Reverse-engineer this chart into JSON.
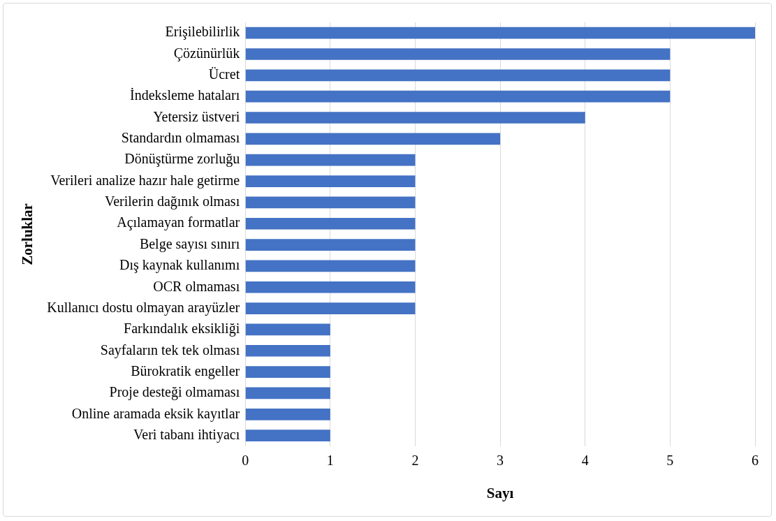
{
  "chart_data": {
    "type": "bar",
    "orientation": "horizontal",
    "xlabel": "Sayı",
    "ylabel": "Zorluklar",
    "categories": [
      "Erişilebilirlik",
      "Çözünürlük",
      "Ücret",
      "İndeksleme hataları",
      "Yetersiz üstveri",
      "Standardın olmaması",
      "Dönüştürme zorluğu",
      "Verileri analize hazır hale getirme",
      "Verilerin dağınık olması",
      "Açılamayan formatlar",
      "Belge sayısı sınırı",
      "Dış kaynak kullanımı",
      "OCR olmaması",
      "Kullanıcı dostu olmayan arayüzler",
      "Farkındalık eksikliği",
      "Sayfaların tek tek olması",
      "Bürokratik engeller",
      "Proje desteği olmaması",
      "Online aramada eksik kayıtlar",
      "Veri tabanı ihtiyacı"
    ],
    "values": [
      6,
      5,
      5,
      5,
      4,
      3,
      2,
      2,
      2,
      2,
      2,
      2,
      2,
      2,
      1,
      1,
      1,
      1,
      1,
      1
    ],
    "color": "#4472c4",
    "xlim": [
      0,
      6
    ],
    "xticks": [
      0,
      1,
      2,
      3,
      4,
      5,
      6
    ],
    "grid": "x",
    "legend": false
  }
}
